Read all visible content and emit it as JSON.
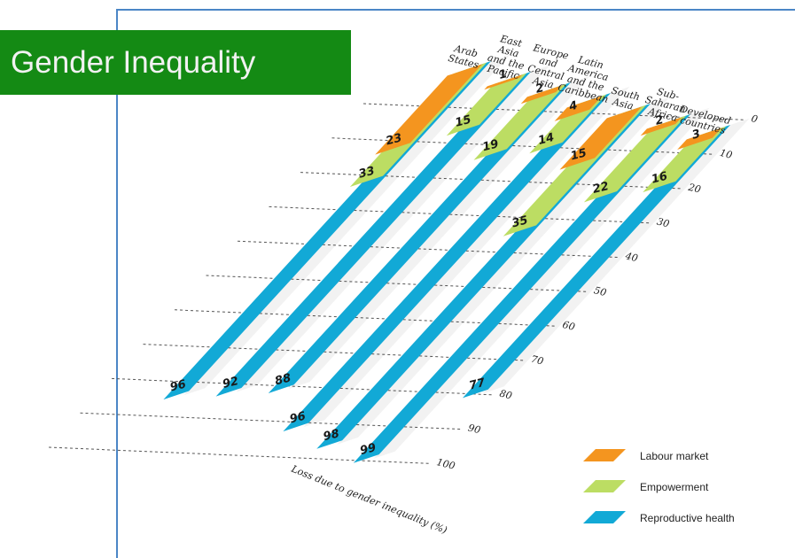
{
  "slide": {
    "title": "Gender Inequality"
  },
  "chart_data": {
    "type": "bar",
    "title": "",
    "xlabel": "",
    "ylabel": "Loss due to gender inequality (%)",
    "ylim": [
      0,
      100
    ],
    "yticks": [
      0,
      10,
      20,
      30,
      40,
      50,
      60,
      70,
      80,
      90,
      100
    ],
    "grid": true,
    "legend_position": "bottom-right",
    "categories": [
      [
        "Arab",
        "States"
      ],
      [
        "East",
        "Asia",
        "and the",
        "Pacific"
      ],
      [
        "Europe",
        "and",
        "Central",
        "Asia"
      ],
      [
        "Latin",
        "America",
        "and the",
        "Caribbean"
      ],
      [
        "South",
        "Asia"
      ],
      [
        "Sub-",
        "Saharan",
        "Africa"
      ],
      [
        "Developed",
        "countries"
      ]
    ],
    "series": [
      {
        "name": "Reproductive health",
        "color": "#12a9d6",
        "values": [
          96,
          92,
          88,
          96,
          98,
          99,
          77
        ]
      },
      {
        "name": "Empowerment",
        "color": "#bcdd63",
        "values": [
          33,
          15,
          19,
          14,
          35,
          22,
          16
        ]
      },
      {
        "name": "Labour market",
        "color": "#f4951f",
        "values": [
          23,
          1,
          2,
          4,
          15,
          2,
          3
        ]
      }
    ],
    "legend_order": [
      "Labour market",
      "Empowerment",
      "Reproductive health"
    ]
  }
}
